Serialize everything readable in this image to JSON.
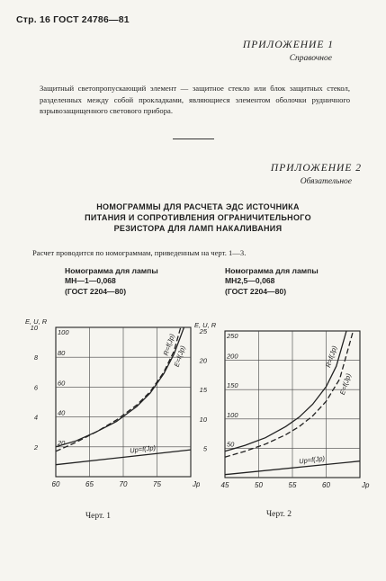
{
  "header": "Стр. 16 ГОСТ 24786—81",
  "appendix1": {
    "title": "ПРИЛОЖЕНИЕ 1",
    "subtitle": "Справочное",
    "text": "Защитный светопропускающий элемент — защитное стекло или блок защитных стекол, разделенных между собой прокладками, являющиеся элементом оболочки рудничного взрывозащищенного светового прибора."
  },
  "appendix2": {
    "title": "ПРИЛОЖЕНИЕ 2",
    "subtitle": "Обязательное",
    "heading_line1": "НОМОГРАММЫ ДЛЯ РАСЧЕТА ЭДС ИСТОЧНИКА",
    "heading_line2": "ПИТАНИЯ И СОПРОТИВЛЕНИЯ ОГРАНИЧИТЕЛЬНОГО",
    "heading_line3": "РЕЗИСТОРА ДЛЯ ЛАМП НАКАЛИВАНИЯ",
    "intro": "Расчет проводится по номограммам, приведенным на черт. 1—3."
  },
  "chart_data": [
    {
      "type": "line",
      "title_lines": [
        "Номограмма для лампы",
        "МН—1—0,068",
        "(ГОСТ 2204—80)"
      ],
      "caption": "Черт. 1",
      "y_axis_label": "E, U, R",
      "x_axis_label": "Jр",
      "x_ticks": [
        "60",
        "65",
        "70",
        "75"
      ],
      "y_ticks_inner": [
        "20",
        "40",
        "60",
        "80",
        "100"
      ],
      "y_ticks_outer": [
        "2",
        "4",
        "6",
        "8",
        "10"
      ],
      "xlim": [
        60,
        80
      ],
      "ylim": [
        0,
        100
      ],
      "grid": true,
      "series": [
        {
          "name": "R=f(Jр)",
          "style": "solid",
          "x": [
            60,
            63,
            66,
            69,
            72,
            74,
            76,
            77.5,
            79
          ],
          "y": [
            20,
            24,
            30,
            37,
            47,
            56,
            69,
            82,
            100
          ]
        },
        {
          "name": "E=f(Jр)",
          "style": "dashed",
          "x": [
            60,
            63,
            66,
            69,
            72,
            74,
            76,
            77.5,
            78.5
          ],
          "y": [
            17,
            23,
            30,
            38,
            48,
            57,
            70,
            84,
            100
          ]
        },
        {
          "name": "Uр=f(Jр)",
          "style": "solid",
          "x": [
            60,
            80
          ],
          "y": [
            8,
            18
          ]
        }
      ]
    },
    {
      "type": "line",
      "title_lines": [
        "Номограмма для лампы",
        "МН2,5—0,068",
        "(ГОСТ 2204—80)"
      ],
      "caption": "Черт. 2",
      "y_axis_label": "E, U, R",
      "x_axis_label": "Jр",
      "x_ticks": [
        "45",
        "50",
        "55",
        "60"
      ],
      "y_ticks_inner": [
        "50",
        "100",
        "150",
        "200",
        "250"
      ],
      "y_ticks_outer": [
        "5",
        "10",
        "15",
        "20",
        "25"
      ],
      "xlim": [
        45,
        65
      ],
      "ylim": [
        0,
        250
      ],
      "grid": true,
      "series": [
        {
          "name": "R=f(Jр)",
          "style": "solid",
          "x": [
            45,
            48,
            51,
            54,
            56,
            58,
            60,
            61.5,
            63
          ],
          "y": [
            45,
            55,
            68,
            87,
            103,
            125,
            155,
            190,
            250
          ]
        },
        {
          "name": "E=f(Jр)",
          "style": "dashed",
          "x": [
            45,
            48,
            51,
            54,
            56,
            58,
            60,
            62,
            64
          ],
          "y": [
            35,
            45,
            57,
            73,
            87,
            105,
            130,
            168,
            250
          ]
        },
        {
          "name": "Uр=f(Jр)",
          "style": "solid",
          "x": [
            45,
            65
          ],
          "y": [
            5,
            28
          ]
        }
      ]
    }
  ]
}
